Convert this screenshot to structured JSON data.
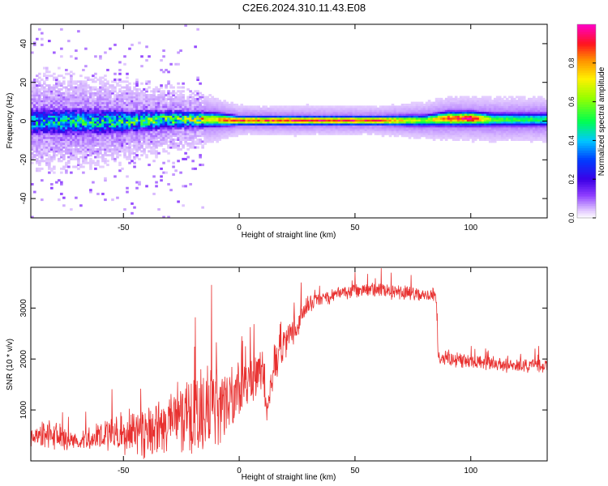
{
  "title": "C2E6.2024.310.11.43.E08",
  "chart_data": [
    {
      "type": "heatmap",
      "xlabel": "Height of straight line (km)",
      "ylabel": "Frequency (Hz)",
      "xlim": [
        -90,
        133
      ],
      "ylim": [
        -50,
        50
      ],
      "xticks": [
        -50,
        0,
        50,
        100
      ],
      "yticks": [
        -40,
        -20,
        0,
        20,
        40
      ],
      "colorbar": {
        "label": "Normalized spectral amplitude",
        "range": [
          0.0,
          1.0
        ],
        "ticks": [
          0.0,
          0.2,
          0.4,
          0.6,
          0.8
        ],
        "colormap": "rainbow (white-violet-blue-cyan-green-yellow-orange-red-magenta)"
      },
      "ridge": {
        "x": [
          -90,
          -70,
          -50,
          -30,
          -10,
          0,
          10,
          20,
          40,
          60,
          80,
          90,
          100,
          110,
          133
        ],
        "frequency_center": [
          0,
          0,
          0,
          1,
          1,
          0.5,
          0.5,
          0.5,
          0.5,
          0.5,
          0.5,
          1.5,
          1.5,
          1,
          1
        ],
        "band_halfwidth": [
          6,
          6,
          5,
          4,
          3,
          2,
          2,
          2,
          2,
          2,
          2.5,
          3,
          3,
          3,
          3
        ],
        "peak_amplitude": [
          0.4,
          0.45,
          0.5,
          0.55,
          0.75,
          0.9,
          0.85,
          0.9,
          0.9,
          0.9,
          0.6,
          0.9,
          0.95,
          0.55,
          0.5
        ]
      }
    },
    {
      "type": "line",
      "xlabel": "Height of straight line (km)",
      "ylabel": "SNR (10 * v/v)",
      "xlim": [
        -90,
        133
      ],
      "ylim": [
        0,
        3800
      ],
      "xticks": [
        -50,
        0,
        50,
        100
      ],
      "yticks": [
        1000,
        2000,
        3000
      ],
      "series": [
        {
          "color": "#e8302f",
          "x": [
            -90,
            -80,
            -70,
            -60,
            -50,
            -40,
            -30,
            -20,
            -10,
            -5,
            0,
            5,
            10,
            12,
            15,
            20,
            25,
            30,
            40,
            50,
            60,
            70,
            80,
            85,
            86,
            90,
            100,
            110,
            120,
            133
          ],
          "mean": [
            450,
            520,
            350,
            450,
            550,
            600,
            700,
            900,
            1100,
            1200,
            1400,
            1600,
            1800,
            1000,
            1900,
            2300,
            2700,
            3100,
            3250,
            3350,
            3350,
            3300,
            3250,
            3250,
            2050,
            2000,
            1950,
            1900,
            1850,
            1850
          ],
          "spread": [
            400,
            600,
            300,
            600,
            800,
            1000,
            1100,
            1400,
            1700,
            1500,
            1000,
            900,
            900,
            700,
            800,
            600,
            500,
            350,
            300,
            280,
            280,
            280,
            250,
            250,
            300,
            300,
            300,
            280,
            280,
            250
          ]
        }
      ]
    }
  ]
}
